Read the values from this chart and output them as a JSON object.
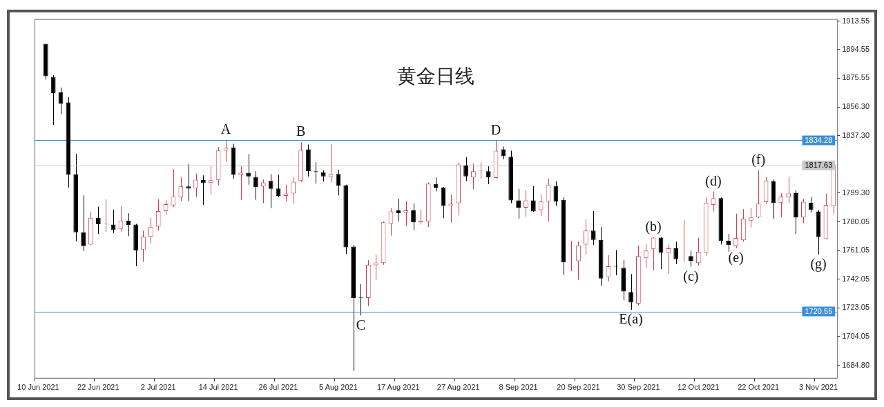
{
  "chart_data": {
    "type": "candlestick",
    "title": "黄金日线",
    "categories": [
      "10 Jun 2021",
      null,
      null,
      null,
      null,
      null,
      null,
      null,
      "22 Jun 2021",
      null,
      null,
      null,
      null,
      null,
      null,
      null,
      "2 Jul 2021",
      null,
      null,
      null,
      null,
      null,
      null,
      null,
      "14 Jul 2021",
      null,
      null,
      null,
      null,
      null,
      null,
      null,
      "26 Jul 2021",
      null,
      null,
      null,
      null,
      null,
      null,
      null,
      "5 Aug 2021",
      null,
      null,
      null,
      null,
      null,
      null,
      null,
      "17 Aug 2021",
      null,
      null,
      null,
      null,
      null,
      null,
      null,
      "27 Aug 2021",
      null,
      null,
      null,
      null,
      null,
      null,
      null,
      "8 Sep 2021",
      null,
      null,
      null,
      null,
      null,
      null,
      null,
      "20 Sep 2021",
      null,
      null,
      null,
      null,
      null,
      null,
      null,
      "30 Sep 2021",
      null,
      null,
      null,
      null,
      null,
      null,
      null,
      "12 Oct 2021",
      null,
      null,
      null,
      null,
      null,
      null,
      null,
      "22 Oct 2021",
      null,
      null,
      null,
      null,
      null,
      null,
      null,
      "3 Nov 2021",
      null,
      null
    ],
    "ohlc": [
      null,
      [
        1898.4,
        1898.4,
        1874.6,
        1876.9
      ],
      [
        1876.4,
        1877.6,
        1844.5,
        1865.7
      ],
      [
        1866.1,
        1869.4,
        1851.6,
        1858.6
      ],
      [
        1859.5,
        1863.0,
        1802.9,
        1811.5
      ],
      [
        1811.8,
        1825.3,
        1767.2,
        1773.2
      ],
      [
        1773.2,
        1797.7,
        1760.7,
        1764.0
      ],
      [
        1765.0,
        1786.7,
        1764.7,
        1782.8
      ],
      [
        1782.8,
        1790.2,
        1772.1,
        1778.5
      ],
      [
        1779.0,
        1795.1,
        1773.3,
        1779.2
      ],
      [
        1778.3,
        1788.2,
        1772.5,
        1774.6
      ],
      [
        1775.4,
        1790.4,
        1773.6,
        1781.0
      ],
      [
        1781.0,
        1785.8,
        1770.6,
        1778.1
      ],
      [
        1778.3,
        1778.8,
        1750.6,
        1761.0
      ],
      [
        1761.7,
        1774.3,
        1753.5,
        1770.3
      ],
      [
        1770.2,
        1782.8,
        1765.7,
        1776.6
      ],
      [
        1777.0,
        1795.1,
        1774.3,
        1787.3
      ],
      [
        1787.3,
        1794.4,
        1784.7,
        1791.9
      ],
      [
        1791.0,
        1815.2,
        1789.9,
        1797.1
      ],
      [
        1796.3,
        1810.0,
        1793.9,
        1803.6
      ],
      [
        1803.6,
        1818.6,
        1794.1,
        1802.3
      ],
      [
        1802.3,
        1812.2,
        1796.6,
        1808.1
      ],
      [
        1807.9,
        1811.0,
        1791.4,
        1805.8
      ],
      [
        1806.0,
        1817.4,
        1798.4,
        1807.8
      ],
      [
        1807.8,
        1829.8,
        1804.4,
        1827.5
      ],
      [
        1827.5,
        1834.5,
        1820.1,
        1829.3
      ],
      [
        1829.6,
        1832.0,
        1808.8,
        1811.5
      ],
      [
        1811.2,
        1817.4,
        1794.8,
        1812.7
      ],
      [
        1812.7,
        1825.3,
        1804.8,
        1810.3
      ],
      [
        1810.0,
        1813.7,
        1794.8,
        1803.3
      ],
      [
        1803.6,
        1808.2,
        1792.5,
        1806.3
      ],
      [
        1807.3,
        1811.8,
        1789.2,
        1802.1
      ],
      [
        1802.3,
        1811.5,
        1796.6,
        1797.4
      ],
      [
        1797.4,
        1804.8,
        1793.7,
        1798.9
      ],
      [
        1798.9,
        1810.0,
        1792.5,
        1806.7
      ],
      [
        1807.3,
        1833.0,
        1806.6,
        1827.8
      ],
      [
        1828.3,
        1831.5,
        1810.3,
        1813.7
      ],
      [
        1813.9,
        1819.7,
        1805.5,
        1813.5
      ],
      [
        1813.0,
        1814.4,
        1807.0,
        1810.3
      ],
      [
        1810.0,
        1831.8,
        1806.6,
        1811.9
      ],
      [
        1811.9,
        1814.7,
        1797.6,
        1804.1
      ],
      [
        1804.4,
        1804.8,
        1758.7,
        1763.2
      ],
      [
        1763.6,
        1764.7,
        1680.9,
        1729.5
      ],
      [
        1730.0,
        1738.7,
        1717.9,
        1729.6
      ],
      [
        1729.5,
        1754.6,
        1724.1,
        1751.6
      ],
      [
        1751.3,
        1758.3,
        1741.6,
        1753.1
      ],
      [
        1752.8,
        1780.3,
        1751.6,
        1779.8
      ],
      [
        1778.8,
        1789.2,
        1770.9,
        1787.0
      ],
      [
        1787.7,
        1795.4,
        1780.6,
        1785.9
      ],
      [
        1786.2,
        1793.9,
        1777.3,
        1787.7
      ],
      [
        1787.7,
        1792.5,
        1774.6,
        1779.8
      ],
      [
        1779.8,
        1788.4,
        1778.3,
        1781.0
      ],
      [
        1780.3,
        1806.3,
        1776.6,
        1805.5
      ],
      [
        1805.2,
        1809.6,
        1800.3,
        1802.9
      ],
      [
        1803.0,
        1803.3,
        1782.5,
        1790.7
      ],
      [
        1790.7,
        1798.1,
        1779.6,
        1792.2
      ],
      [
        1792.5,
        1819.7,
        1784.3,
        1818.2
      ],
      [
        1817.7,
        1823.1,
        1807.3,
        1810.3
      ],
      [
        1809.6,
        1818.9,
        1801.8,
        1813.7
      ],
      [
        1813.9,
        1819.7,
        1808.8,
        1814.1
      ],
      [
        1813.7,
        1817.0,
        1805.1,
        1809.6
      ],
      [
        1809.3,
        1834.1,
        1809.0,
        1827.4
      ],
      [
        1828.3,
        1830.1,
        1821.6,
        1823.7
      ],
      [
        1823.4,
        1827.4,
        1792.5,
        1794.4
      ],
      [
        1794.4,
        1802.1,
        1782.2,
        1789.5
      ],
      [
        1789.5,
        1801.1,
        1783.6,
        1794.4
      ],
      [
        1794.4,
        1803.8,
        1786.8,
        1787.0
      ],
      [
        1788.0,
        1798.4,
        1784.0,
        1793.6
      ],
      [
        1793.6,
        1808.8,
        1780.3,
        1804.8
      ],
      [
        1804.0,
        1807.0,
        1790.7,
        1793.6
      ],
      [
        1794.7,
        1796.3,
        1744.9,
        1753.2
      ],
      [
        1754.2,
        1767.4,
        1747.3,
        1754.4
      ],
      [
        1754.0,
        1766.9,
        1741.7,
        1764.4
      ],
      [
        1765.0,
        1781.8,
        1758.0,
        1774.3
      ],
      [
        1774.3,
        1787.3,
        1764.7,
        1768.1
      ],
      [
        1768.1,
        1776.6,
        1737.6,
        1742.4
      ],
      [
        1743.4,
        1758.0,
        1740.5,
        1750.6
      ],
      [
        1750.8,
        1761.3,
        1744.6,
        1750.4
      ],
      [
        1749.5,
        1754.7,
        1728.0,
        1733.9
      ],
      [
        1733.5,
        1745.4,
        1721.6,
        1726.5
      ],
      [
        1725.8,
        1764.4,
        1724.6,
        1757.3
      ],
      [
        1756.2,
        1765.4,
        1749.5,
        1761.0
      ],
      [
        1762.2,
        1769.9,
        1747.9,
        1769.6
      ],
      [
        1769.6,
        1769.8,
        1748.6,
        1759.8
      ],
      [
        1759.5,
        1765.1,
        1745.7,
        1762.5
      ],
      [
        1762.5,
        1766.9,
        1752.1,
        1755.3
      ],
      [
        1756.4,
        1781.5,
        1753.5,
        1756.6
      ],
      [
        1757.3,
        1761.0,
        1750.3,
        1754.3
      ],
      [
        1752.8,
        1769.6,
        1751.0,
        1760.2
      ],
      [
        1759.5,
        1796.3,
        1757.7,
        1792.9
      ],
      [
        1791.4,
        1800.3,
        1787.0,
        1795.9
      ],
      [
        1795.9,
        1796.3,
        1765.1,
        1767.4
      ],
      [
        1767.6,
        1772.1,
        1760.2,
        1764.7
      ],
      [
        1763.9,
        1785.5,
        1762.8,
        1769.4
      ],
      [
        1767.9,
        1788.5,
        1766.9,
        1782.2
      ],
      [
        1781.0,
        1789.5,
        1776.6,
        1783.0
      ],
      [
        1783.0,
        1814.5,
        1782.5,
        1792.2
      ],
      [
        1793.2,
        1810.0,
        1792.2,
        1807.5
      ],
      [
        1807.0,
        1808.2,
        1782.2,
        1792.6
      ],
      [
        1792.6,
        1799.3,
        1783.3,
        1796.9
      ],
      [
        1796.6,
        1810.3,
        1792.5,
        1798.9
      ],
      [
        1799.2,
        1801.1,
        1772.1,
        1783.0
      ],
      [
        1783.0,
        1795.4,
        1779.3,
        1793.4
      ],
      [
        1792.9,
        1796.6,
        1786.5,
        1788.0
      ],
      [
        1787.0,
        1788.0,
        1758.5,
        1769.9
      ],
      [
        1768.7,
        1798.9,
        1768.5,
        1791.4
      ],
      [
        1790.7,
        1818.0,
        1785.0,
        1817.63
      ]
    ],
    "colors": [
      null,
      "#000000",
      "#000000",
      "#000000",
      "#000000",
      "#000000",
      "#000000",
      "#d0404c",
      "#000000",
      "#d0404c",
      "#000000",
      "#d0404c",
      "#000000",
      "#000000",
      "#d0404c",
      "#d0404c",
      "#d0404c",
      "#d0404c",
      "#d0404c",
      "#d0404c",
      "#000000",
      "#d0404c",
      "#000000",
      "#d0404c",
      "#d0404c",
      "#d0404c",
      "#000000",
      "#d0404c",
      "#000000",
      "#000000",
      "#d0404c",
      "#000000",
      "#000000",
      "#d0404c",
      "#d0404c",
      "#d0404c",
      "#000000",
      "#000000",
      "#000000",
      "#d0404c",
      "#000000",
      "#000000",
      "#000000",
      "#000000",
      "#d0404c",
      "#d0404c",
      "#d0404c",
      "#d0404c",
      "#000000",
      "#d0404c",
      "#000000",
      "#d0404c",
      "#d0404c",
      "#000000",
      "#000000",
      "#d0404c",
      "#d0404c",
      "#000000",
      "#d0404c",
      "#d0404c",
      "#000000",
      "#d0404c",
      "#000000",
      "#000000",
      "#000000",
      "#d0404c",
      "#000000",
      "#d0404c",
      "#d0404c",
      "#000000",
      "#000000",
      "#d0404c",
      "#d0404c",
      "#d0404c",
      "#000000",
      "#000000",
      "#d0404c",
      "#000000",
      "#000000",
      "#000000",
      "#d0404c",
      "#d0404c",
      "#d0404c",
      "#000000",
      "#d0404c",
      "#000000",
      "#d0404c",
      "#000000",
      "#d0404c",
      "#d0404c",
      "#d0404c",
      "#000000",
      "#000000",
      "#d0404c",
      "#d0404c",
      "#d0404c",
      "#d0404c",
      "#d0404c",
      "#000000",
      "#d0404c",
      "#d0404c",
      "#000000",
      "#d0404c",
      "#000000",
      "#000000",
      "#d0404c",
      "#d0404c"
    ],
    "ylim": [
      1676.4,
      1914.9
    ],
    "yticks": [
      {
        "value": 1684.8,
        "label": "1684.80"
      },
      {
        "value": 1704.05,
        "label": "1704.05"
      },
      {
        "value": 1723.05,
        "label": "1723.05"
      },
      {
        "value": 1742.05,
        "label": "1742.05"
      },
      {
        "value": 1761.05,
        "label": "1761.05"
      },
      {
        "value": 1780.05,
        "label": "1780.05"
      },
      {
        "value": 1799.3,
        "label": "1799.30"
      },
      {
        "value": 1837.3,
        "label": "1837.30"
      },
      {
        "value": 1856.3,
        "label": "1856.30"
      },
      {
        "value": 1875.55,
        "label": "1875.55"
      },
      {
        "value": 1894.55,
        "label": "1894.55"
      },
      {
        "value": 1913.55,
        "label": "1913.55"
      }
    ],
    "ref_lines": [
      {
        "axis": "y",
        "value": 1834.28,
        "label": "1834.28",
        "color": "#3d8ed8"
      },
      {
        "axis": "y",
        "value": 1720.55,
        "label": "1720.55",
        "color": "#3d8ed8"
      },
      {
        "axis": "y",
        "value": 1817.63,
        "label": "1817.63",
        "color": "#c8c8c8"
      }
    ],
    "annotations": [
      {
        "text": "A",
        "y": 1834.5
      },
      {
        "text": "B",
        "y": 1833.0
      },
      {
        "text": "C",
        "y": 1717.9
      },
      {
        "text": "D",
        "y": 1834.1
      },
      {
        "text": "E(a)",
        "y": 1721.6
      },
      {
        "text": "(b)",
        "y": 1769.9
      },
      {
        "text": "(c)",
        "y": 1750.3
      },
      {
        "text": "(d)",
        "y": 1800.3
      },
      {
        "text": "(e)",
        "y": 1762.8
      },
      {
        "text": "(f)",
        "y": 1814.5
      },
      {
        "text": "(g)",
        "y": 1758.5
      }
    ],
    "legend": false
  }
}
